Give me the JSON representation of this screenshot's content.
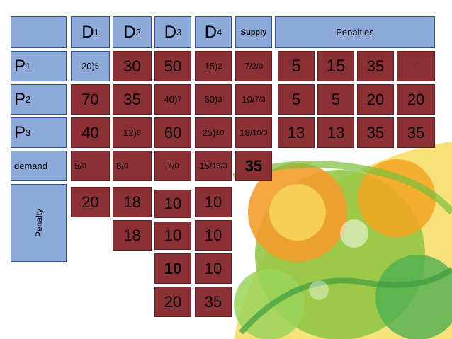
{
  "headers": {
    "d1": {
      "main": "D",
      "sub": "1"
    },
    "d2": {
      "main": "D",
      "sub": "2"
    },
    "d3": {
      "main": "D",
      "sub": "3"
    },
    "d4": {
      "main": "D",
      "sub": "4"
    },
    "supply": "Supply",
    "penalties": "Penalties"
  },
  "rows": {
    "p1": {
      "main": "P",
      "sub": "1"
    },
    "p2": {
      "main": "P",
      "sub": "2"
    },
    "p3": {
      "main": "P",
      "sub": "3"
    },
    "demand": "demand",
    "penalty": "Penalty"
  },
  "grid": {
    "r1": {
      "c1": {
        "main": "20)",
        "sub": "5"
      },
      "c2": "30",
      "c3": "50",
      "c4": {
        "main": "15)",
        "sub": "2"
      },
      "supply": {
        "main": "7/",
        "sub": "2/0"
      }
    },
    "r2": {
      "c1": "70",
      "c2": "35",
      "c3": {
        "main": "40)",
        "sub": "7"
      },
      "c4": {
        "main": "60)",
        "sub": "3"
      },
      "supply": {
        "main": "10/",
        "sub": "7/3"
      }
    },
    "r3": {
      "c1": "40",
      "c2": {
        "main": "12)",
        "sub": "8"
      },
      "c3": "60",
      "c4": {
        "main": "25)",
        "sub": "10"
      },
      "supply": {
        "main": "18/",
        "sub": "10/0"
      }
    }
  },
  "demand": {
    "d1": {
      "main": "5/",
      "sub": "0"
    },
    "d2": {
      "main": "8/",
      "sub": "0"
    },
    "d3": {
      "main": "7/",
      "sub": "0"
    },
    "d4": {
      "main": "15/",
      "sub": "13/3"
    },
    "total": "35"
  },
  "row_penalties": {
    "p1": [
      "5",
      "15",
      "35",
      "-"
    ],
    "p2": [
      "5",
      "5",
      "20",
      "20"
    ],
    "p3": [
      "13",
      "13",
      "35",
      "35"
    ]
  },
  "col_penalties": {
    "r1": [
      "20",
      "18",
      "10",
      "10"
    ],
    "r2": [
      "18",
      "10",
      "10"
    ],
    "r3": [
      "10",
      "10"
    ],
    "r4": [
      "20",
      "35"
    ]
  },
  "colors": {
    "header_blue": "#8eaadb",
    "cell_red": "#8b3135"
  }
}
